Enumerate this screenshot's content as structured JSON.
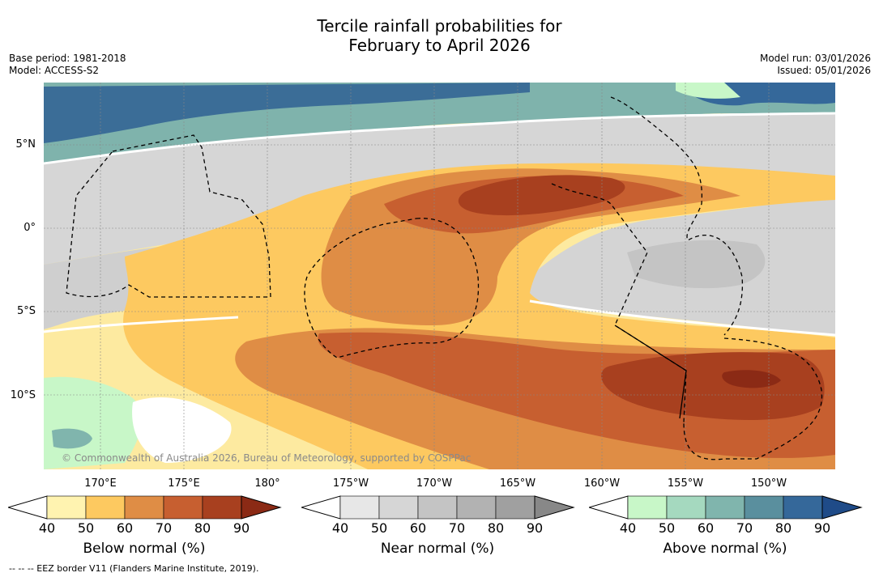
{
  "title_line1": "Tercile rainfall probabilities for",
  "title_line2": "February to April 2026",
  "meta_left": {
    "base_period": "Base period: 1981-2018",
    "model": "Model: ACCESS-S2"
  },
  "meta_right": {
    "model_run": "Model run: 03/01/2026",
    "issued": "Issued: 05/01/2026"
  },
  "lat_labels": [
    "5°N",
    "0°",
    "5°S",
    "10°S"
  ],
  "lon_labels": [
    "170°E",
    "175°E",
    "180°",
    "175°W",
    "170°W",
    "165°W",
    "160°W",
    "155°W",
    "150°W"
  ],
  "credit": "© Commonwealth of Australia 2026, Bureau of Meteorology, supported by COSPPac",
  "colorbars": {
    "below": {
      "title": "Below normal (%)",
      "ticks": [
        "40",
        "50",
        "60",
        "70",
        "80",
        "90"
      ],
      "colors": [
        "#fff3b0",
        "#fdc960",
        "#df8d45",
        "#c75f30",
        "#a8401f",
        "#8b2a15"
      ]
    },
    "near": {
      "title": "Near normal (%)",
      "ticks": [
        "40",
        "50",
        "60",
        "70",
        "80",
        "90"
      ],
      "colors": [
        "#e7e7e7",
        "#d6d6d6",
        "#c4c4c4",
        "#b2b2b2",
        "#a0a0a0",
        "#888888"
      ]
    },
    "above": {
      "title": "Above normal (%)",
      "ticks": [
        "40",
        "50",
        "60",
        "70",
        "80",
        "90"
      ],
      "colors": [
        "#c8f7c8",
        "#a5d9bf",
        "#80b5ad",
        "#5a8f9e",
        "#35689a",
        "#1f4b88"
      ]
    }
  },
  "footnote": "-- -- -- EEZ border V11 (Flanders Marine Institute, 2019)."
}
